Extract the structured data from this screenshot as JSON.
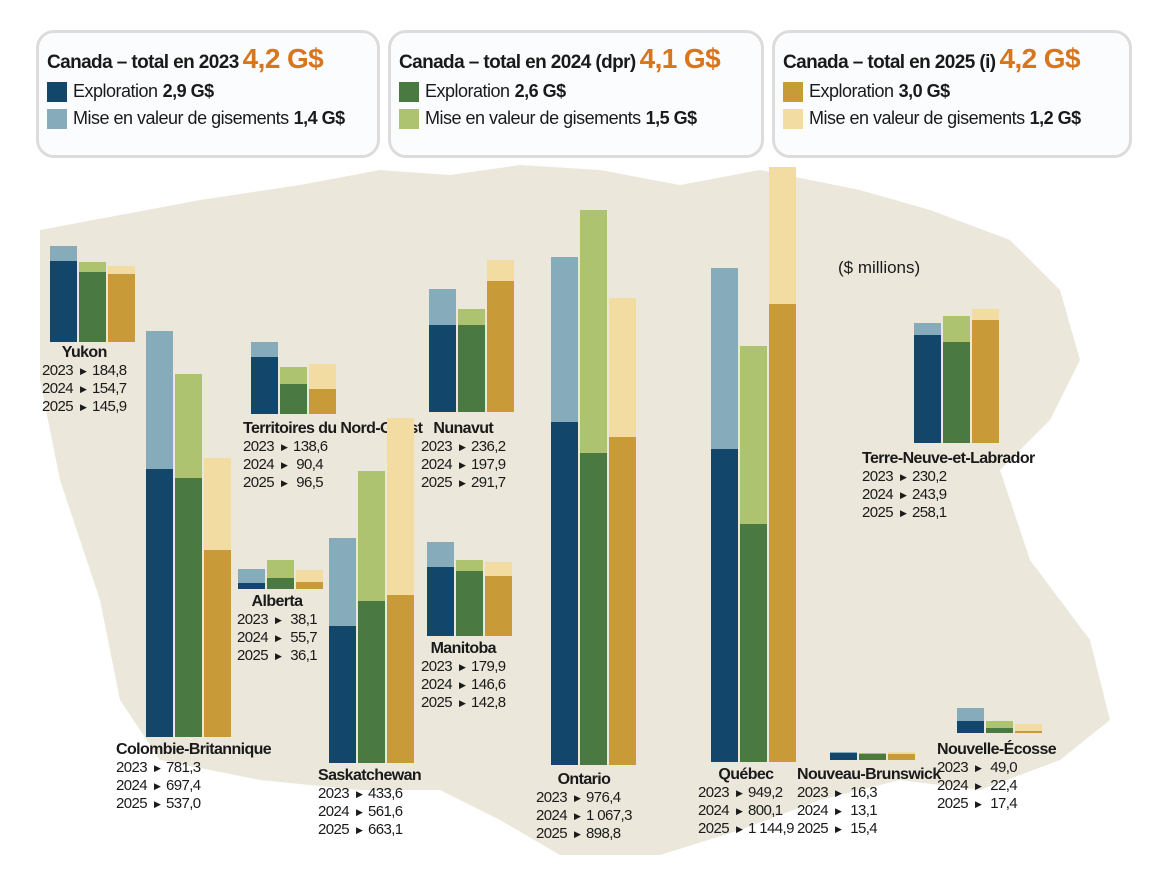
{
  "legends": [
    {
      "title": "Canada – total en 2023",
      "total": "4,2 G$",
      "exploration_label": "Exploration",
      "exploration_value": "2,9 G$",
      "development_label": "Mise en valeur de gisements",
      "development_value": "1,4 G$",
      "exploration_color": "#12476b",
      "development_color": "#86abbb"
    },
    {
      "title": "Canada – total en 2024 (dpr)",
      "total": "4,1 G$",
      "exploration_label": "Exploration",
      "exploration_value": "2,6 G$",
      "development_label": "Mise en valeur de gisements",
      "development_value": "1,5 G$",
      "exploration_color": "#4a7a41",
      "development_color": "#aec36f"
    },
    {
      "title": "Canada – total en 2025 (i)",
      "total": "4,2 G$",
      "exploration_label": "Exploration",
      "exploration_value": "3,0 G$",
      "development_label": "Mise en valeur de gisements",
      "development_value": "1,2 G$",
      "exploration_color": "#c89a38",
      "development_color": "#f2dca2"
    }
  ],
  "unit": "($ millions)",
  "chart_data": {
    "type": "bar",
    "stacked": true,
    "unit": "($ millions)",
    "years": [
      "2023",
      "2024",
      "2025"
    ],
    "series": [
      "Exploration",
      "Mise en valeur de gisements"
    ],
    "regions": [
      {
        "name": "Yukon",
        "totals": [
          184.8,
          154.7,
          145.9
        ],
        "labels": [
          "184,8",
          "154,7",
          "145,9"
        ],
        "exploration": [
          156,
          135,
          131
        ]
      },
      {
        "name": "Colombie-Britannique",
        "totals": [
          781.3,
          697.4,
          537.0
        ],
        "labels": [
          "781,3",
          "697,4",
          "537,0"
        ],
        "exploration": [
          515,
          498,
          360
        ]
      },
      {
        "name": "Territoires du Nord-Ouest",
        "totals": [
          138.6,
          90.4,
          96.5
        ],
        "labels": [
          "138,6",
          "90,4",
          "96,5"
        ],
        "exploration": [
          110,
          58,
          48
        ]
      },
      {
        "name": "Alberta",
        "totals": [
          38.1,
          55.7,
          36.1
        ],
        "labels": [
          "38,1",
          "55,7",
          "36,1"
        ],
        "exploration": [
          12,
          21,
          13
        ]
      },
      {
        "name": "Saskatchewan",
        "totals": [
          433.6,
          561.6,
          663.1
        ],
        "labels": [
          "433,6",
          "561,6",
          "663,1"
        ],
        "exploration": [
          263,
          311,
          323
        ]
      },
      {
        "name": "Nunavut",
        "totals": [
          236.2,
          197.9,
          291.7
        ],
        "labels": [
          "236,2",
          "197,9",
          "291,7"
        ],
        "exploration": [
          167,
          167,
          252
        ]
      },
      {
        "name": "Manitoba",
        "totals": [
          179.9,
          146.6,
          142.8
        ],
        "labels": [
          "179,9",
          "146,6",
          "142,8"
        ],
        "exploration": [
          133,
          125,
          115
        ]
      },
      {
        "name": "Ontario",
        "totals": [
          976.4,
          1067.3,
          898.8
        ],
        "labels": [
          "976,4",
          "1 067,3",
          "898,8"
        ],
        "exploration": [
          660,
          600,
          631
        ]
      },
      {
        "name": "Québec",
        "totals": [
          949.2,
          800.1,
          1144.9
        ],
        "labels": [
          "949,2",
          "800,1",
          "1 144,9"
        ],
        "exploration": [
          602,
          458,
          881
        ]
      },
      {
        "name": "Terre-Neuve-et-Labrador",
        "totals": [
          230.2,
          243.9,
          258.1
        ],
        "labels": [
          "230,2",
          "243,9",
          "258,1"
        ],
        "exploration": [
          208,
          194,
          237
        ]
      },
      {
        "name": "Nouveau-Brunswick",
        "totals": [
          16.3,
          13.1,
          15.4
        ],
        "labels": [
          "16,3",
          "13,1",
          "15,4"
        ],
        "exploration": [
          13,
          11,
          12
        ]
      },
      {
        "name": "Nouvelle-Écosse",
        "totals": [
          49.0,
          22.4,
          17.4
        ],
        "labels": [
          "49,0",
          "22,4",
          "17,4"
        ],
        "exploration": [
          23,
          10,
          4
        ]
      }
    ]
  }
}
